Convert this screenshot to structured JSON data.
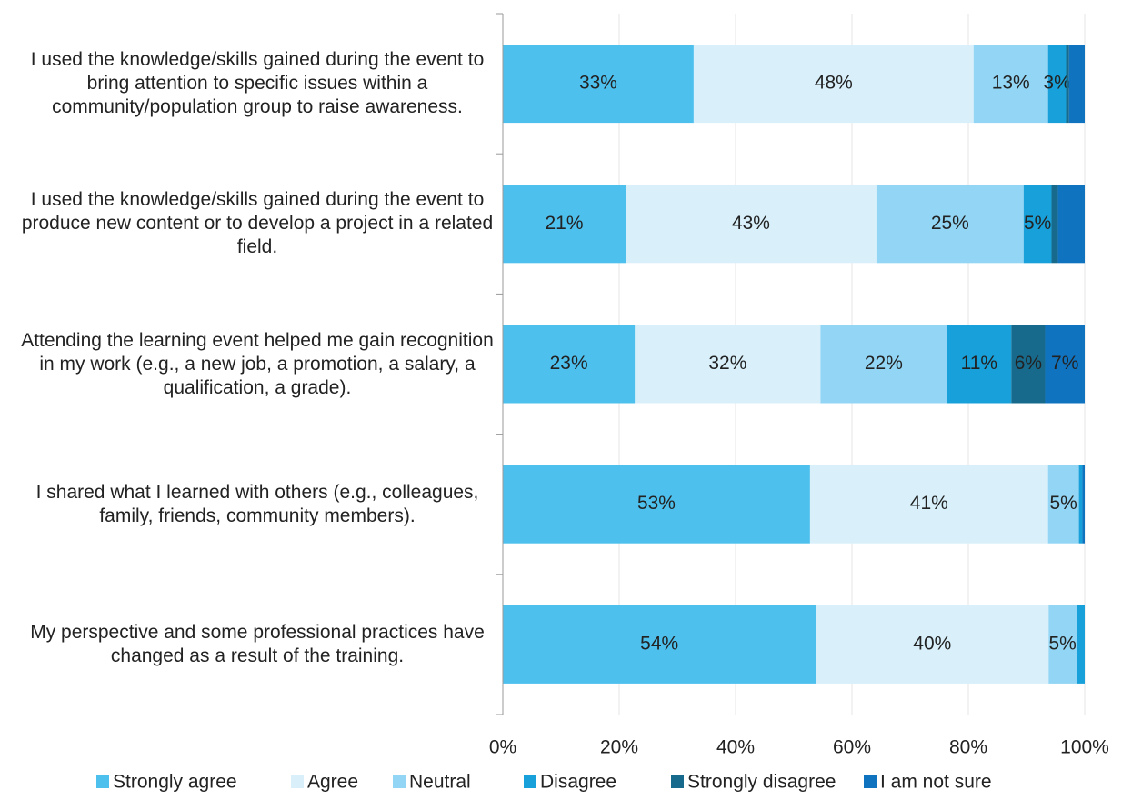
{
  "chart_data": {
    "type": "stacked-bar-horizontal",
    "categories": [
      "I used the knowledge/skills gained during the event to bring attention to specific issues within a community/population group to raise awareness.",
      "I used the knowledge/skills gained during the event to produce new content or to develop a project in a related field.",
      "Attending the learning event helped me gain recognition in my work (e.g., a new job, a promotion, a salary, a qualification, a grade).",
      "I shared what I learned with others (e.g., colleagues, family, friends, community members).",
      "My perspective and some professional practices have changed as a result of the training."
    ],
    "series": [
      {
        "name": "Strongly agree",
        "color": "#4dc0ee",
        "values": [
          32.8,
          21.1,
          22.7,
          52.8,
          53.8
        ],
        "value_labels": [
          "33%",
          "21%",
          "23%",
          "53%",
          "54%"
        ]
      },
      {
        "name": "Agree",
        "color": "#d9f0fb",
        "values": [
          48.1,
          43.1,
          31.9,
          40.9,
          40.0
        ],
        "value_labels": [
          "48%",
          "43%",
          "32%",
          "41%",
          "40%"
        ]
      },
      {
        "name": "Neutral",
        "color": "#92d5f4",
        "values": [
          12.8,
          25.3,
          21.7,
          5.3,
          4.8
        ],
        "value_labels": [
          "13%",
          "25%",
          "22%",
          "5%",
          "5%"
        ]
      },
      {
        "name": "Disagree",
        "color": "#17a0d9",
        "values": [
          3.1,
          4.8,
          11.1,
          0.6,
          1.4
        ],
        "value_labels": [
          "3%",
          "5%",
          "11%",
          null,
          null
        ]
      },
      {
        "name": "Strongly disagree",
        "color": "#176a8c",
        "values": [
          0.5,
          1.1,
          5.8,
          0,
          0
        ],
        "value_labels": [
          null,
          null,
          "6%",
          null,
          null
        ]
      },
      {
        "name": "I am not sure",
        "color": "#0f73c0",
        "values": [
          2.7,
          4.6,
          6.8,
          0.4,
          0
        ],
        "value_labels": [
          null,
          null,
          "7%",
          null,
          null
        ]
      }
    ],
    "xlim": [
      0,
      100
    ],
    "xticks": [
      {
        "value": 0,
        "label": "0%"
      },
      {
        "value": 20,
        "label": "20%"
      },
      {
        "value": 40,
        "label": "40%"
      },
      {
        "value": 60,
        "label": "60%"
      },
      {
        "value": 80,
        "label": "80%"
      },
      {
        "value": 100,
        "label": "100%"
      }
    ],
    "grid": true,
    "legend": "bottom"
  }
}
